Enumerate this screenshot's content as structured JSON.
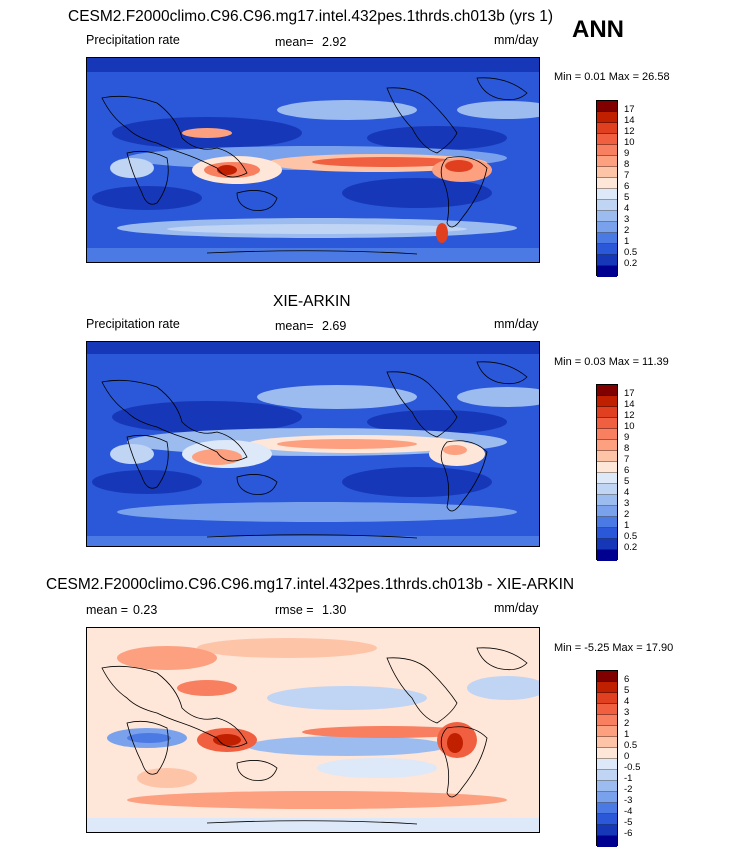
{
  "season": "ANN",
  "panel1": {
    "title": "CESM2.F2000climo.C96.C96.mg17.intel.432pes.1thrds.ch013b (yrs 1)",
    "variable": "Precipitation rate",
    "mean_label": "mean=",
    "mean_value": "2.92",
    "units": "mm/day",
    "minmax": "Min =  0.01 Max =  26.58"
  },
  "panel2": {
    "title": "XIE-ARKIN",
    "variable": "Precipitation rate",
    "mean_label": "mean=",
    "mean_value": "2.69",
    "units": "mm/day",
    "minmax": "Min =  0.03 Max =  11.39"
  },
  "panel3": {
    "title": "CESM2.F2000climo.C96.C96.mg17.intel.432pes.1thrds.ch013b - XIE-ARKIN",
    "mean_label": "mean =",
    "mean_value": "0.23",
    "rmse_label": "rmse =",
    "rmse_value": "1.30",
    "units": "mm/day",
    "minmax": "Min = -5.25 Max =  17.90"
  },
  "colorbar_precip": {
    "labels": [
      "17",
      "14",
      "12",
      "10",
      "9",
      "8",
      "7",
      "6",
      "5",
      "4",
      "3",
      "2",
      "1",
      "0.5",
      "0.2"
    ],
    "colors": [
      "#800000",
      "#c02000",
      "#e04020",
      "#f06040",
      "#f88060",
      "#fca080",
      "#fec4a8",
      "#fee6d8",
      "#dde8f8",
      "#c0d4f4",
      "#9cbcf0",
      "#7aa2ec",
      "#4c7ae4",
      "#2a58d8",
      "#1638b8",
      "#000090"
    ]
  },
  "colorbar_diff": {
    "labels": [
      "6",
      "5",
      "4",
      "3",
      "2",
      "1",
      "0.5",
      "0",
      "-0.5",
      "-1",
      "-2",
      "-3",
      "-4",
      "-5",
      "-6"
    ],
    "colors": [
      "#800000",
      "#c02000",
      "#e04020",
      "#f06040",
      "#f88060",
      "#fca080",
      "#fec4a8",
      "#fee6d8",
      "#dde8f8",
      "#c0d4f4",
      "#9cbcf0",
      "#7aa2ec",
      "#4c7ae4",
      "#2a58d8",
      "#1638b8",
      "#000090"
    ]
  }
}
